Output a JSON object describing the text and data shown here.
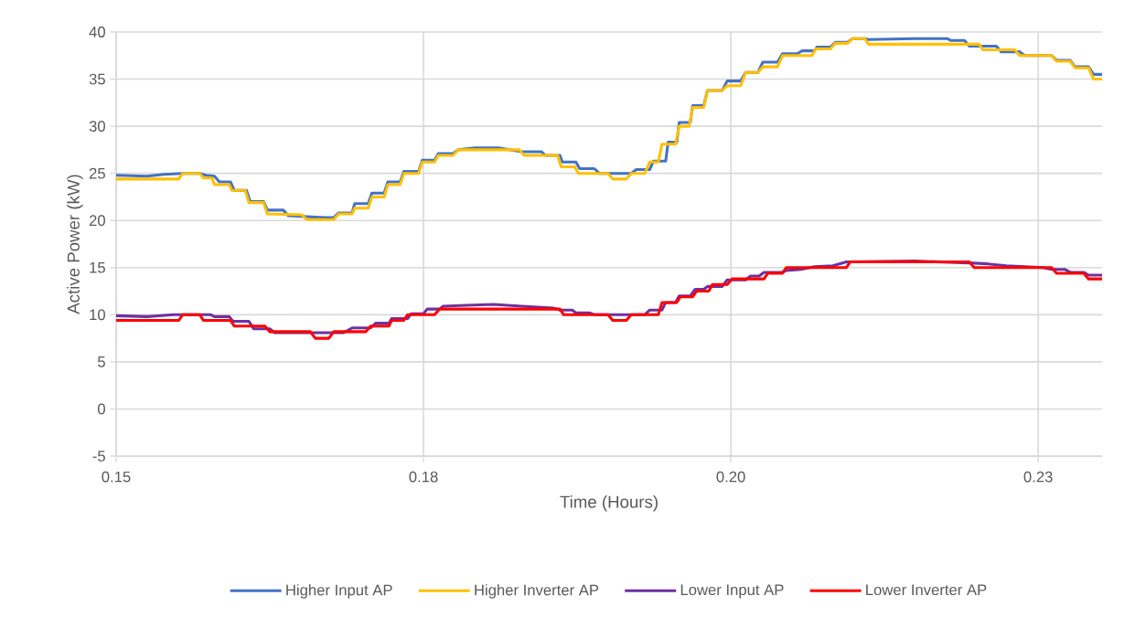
{
  "chart_data": {
    "type": "line",
    "xlabel": "Time (Hours)",
    "ylabel": "Active Power (kW)",
    "xlim": [
      0.15,
      0.2302
    ],
    "xticks": [
      {
        "value": 0.15,
        "label": "0.15"
      },
      {
        "value": 0.175,
        "label": "0.18"
      },
      {
        "value": 0.2,
        "label": "0.20"
      },
      {
        "value": 0.225,
        "label": "0.23"
      }
    ],
    "ylim": [
      -5,
      40
    ],
    "yticks": [
      -5,
      0,
      5,
      10,
      15,
      20,
      25,
      30,
      35,
      40
    ],
    "grid": true,
    "legend": "bottom",
    "series": [
      {
        "name": "Higher Input AP",
        "color": "#4472c4",
        "x": [
          0.15,
          0.1525,
          0.1539,
          0.1554,
          0.1568,
          0.1573,
          0.158,
          0.1584,
          0.1593,
          0.1596,
          0.1606,
          0.1609,
          0.162,
          0.1623,
          0.1636,
          0.164,
          0.167,
          0.1677,
          0.1681,
          0.1692,
          0.1694,
          0.1705,
          0.1708,
          0.1718,
          0.1721,
          0.1731,
          0.1734,
          0.1746,
          0.1749,
          0.1759,
          0.1762,
          0.1774,
          0.1778,
          0.1792,
          0.1811,
          0.183,
          0.1846,
          0.1849,
          0.1861,
          0.1863,
          0.1874,
          0.1877,
          0.1889,
          0.1893,
          0.1919,
          0.1923,
          0.1934,
          0.1937,
          0.1947,
          0.1949,
          0.1956,
          0.1958,
          0.1967,
          0.1969,
          0.1978,
          0.1981,
          0.1993,
          0.1997,
          0.2008,
          0.2012,
          0.2022,
          0.2026,
          0.2038,
          0.2042,
          0.2054,
          0.2058,
          0.2068,
          0.207,
          0.2081,
          0.2085,
          0.2095,
          0.2099,
          0.2109,
          0.2112,
          0.215,
          0.2176,
          0.2179,
          0.219,
          0.2194,
          0.2216,
          0.222,
          0.2235,
          0.2239,
          0.2261,
          0.2265,
          0.2276,
          0.228,
          0.2291,
          0.2295,
          0.2302
        ],
        "values": [
          24.8,
          24.7,
          24.9,
          25.0,
          25.0,
          24.8,
          24.7,
          24.1,
          24.1,
          23.2,
          23.2,
          22.0,
          22.0,
          21.1,
          21.1,
          20.5,
          20.3,
          20.3,
          20.8,
          20.8,
          21.8,
          21.8,
          22.9,
          22.9,
          24.1,
          24.1,
          25.2,
          25.2,
          26.4,
          26.4,
          27.1,
          27.1,
          27.5,
          27.7,
          27.7,
          27.3,
          27.3,
          26.9,
          26.9,
          26.2,
          26.2,
          25.5,
          25.5,
          25.0,
          25.0,
          25.4,
          25.4,
          26.3,
          26.3,
          28.3,
          28.3,
          30.4,
          30.4,
          32.2,
          32.2,
          33.8,
          33.8,
          34.8,
          34.8,
          35.7,
          35.7,
          36.8,
          36.8,
          37.7,
          37.7,
          38.0,
          38.0,
          38.4,
          38.4,
          38.9,
          38.9,
          39.3,
          39.3,
          39.2,
          39.3,
          39.3,
          39.1,
          39.1,
          38.5,
          38.5,
          37.9,
          37.9,
          37.5,
          37.5,
          37.0,
          37.0,
          36.3,
          36.3,
          35.5,
          35.5
        ]
      },
      {
        "name": "Higher Inverter AP",
        "color": "#ffc000",
        "x": [
          0.15,
          0.1551,
          0.1554,
          0.1568,
          0.1571,
          0.1578,
          0.158,
          0.1592,
          0.1594,
          0.1605,
          0.1608,
          0.162,
          0.1623,
          0.1651,
          0.1655,
          0.1677,
          0.1681,
          0.1692,
          0.1694,
          0.1705,
          0.1708,
          0.1718,
          0.1721,
          0.1731,
          0.1734,
          0.1746,
          0.1749,
          0.1759,
          0.1762,
          0.1774,
          0.1778,
          0.1828,
          0.1832,
          0.1859,
          0.1862,
          0.1873,
          0.1876,
          0.19,
          0.1904,
          0.1915,
          0.1919,
          0.193,
          0.1934,
          0.1941,
          0.1944,
          0.1947,
          0.1955,
          0.1958,
          0.1966,
          0.1969,
          0.1978,
          0.1981,
          0.1993,
          0.1997,
          0.2008,
          0.2012,
          0.2022,
          0.2026,
          0.2038,
          0.2042,
          0.2066,
          0.2069,
          0.2081,
          0.2085,
          0.2095,
          0.2099,
          0.2109,
          0.2112,
          0.2202,
          0.2205,
          0.2231,
          0.2235,
          0.2261,
          0.2265,
          0.2276,
          0.228,
          0.2291,
          0.2295,
          0.2302
        ],
        "values": [
          24.4,
          24.4,
          25.0,
          25.0,
          24.5,
          24.5,
          23.8,
          23.8,
          23.2,
          23.2,
          21.9,
          21.9,
          20.7,
          20.6,
          20.1,
          20.1,
          20.7,
          20.7,
          21.3,
          21.3,
          22.5,
          22.5,
          23.8,
          23.8,
          25.0,
          25.0,
          26.2,
          26.2,
          26.9,
          26.9,
          27.5,
          27.5,
          26.9,
          26.9,
          25.7,
          25.7,
          25.0,
          25.0,
          24.4,
          24.4,
          25.0,
          25.0,
          26.2,
          26.2,
          28.1,
          28.1,
          28.1,
          30.0,
          30.0,
          32.0,
          32.0,
          33.8,
          33.8,
          34.3,
          34.3,
          35.7,
          35.7,
          36.3,
          36.3,
          37.5,
          37.5,
          38.2,
          38.2,
          38.8,
          38.8,
          39.3,
          39.3,
          38.7,
          38.7,
          38.1,
          38.1,
          37.5,
          37.5,
          36.9,
          36.9,
          36.2,
          36.2,
          35.0,
          35.0
        ]
      },
      {
        "name": "Lower Input AP",
        "color": "#7030a0",
        "x": [
          0.15,
          0.1525,
          0.1547,
          0.1577,
          0.158,
          0.1592,
          0.1595,
          0.1608,
          0.1612,
          0.1625,
          0.1629,
          0.1658,
          0.1685,
          0.1688,
          0.1692,
          0.1707,
          0.1711,
          0.1722,
          0.1724,
          0.1737,
          0.174,
          0.175,
          0.1753,
          0.1763,
          0.1766,
          0.1785,
          0.1807,
          0.183,
          0.1856,
          0.1861,
          0.1871,
          0.1874,
          0.1885,
          0.1889,
          0.193,
          0.1934,
          0.1944,
          0.1947,
          0.1955,
          0.1958,
          0.1967,
          0.1971,
          0.1978,
          0.1981,
          0.1993,
          0.1997,
          0.2012,
          0.2016,
          0.2023,
          0.2027,
          0.2042,
          0.2045,
          0.2057,
          0.2068,
          0.2083,
          0.2094,
          0.215,
          0.2194,
          0.2209,
          0.2224,
          0.2239,
          0.2254,
          0.2261,
          0.2272,
          0.2276,
          0.2287,
          0.2291,
          0.2302
        ],
        "values": [
          9.9,
          9.8,
          10.0,
          10.0,
          9.8,
          9.8,
          9.3,
          9.3,
          8.5,
          8.5,
          8.1,
          8.1,
          8.1,
          8.3,
          8.6,
          8.6,
          9.1,
          9.1,
          9.6,
          9.6,
          10.1,
          10.1,
          10.6,
          10.6,
          10.9,
          11.0,
          11.1,
          10.9,
          10.7,
          10.5,
          10.5,
          10.2,
          10.2,
          10.0,
          10.0,
          10.5,
          10.5,
          11.3,
          11.3,
          12.0,
          12.0,
          12.7,
          12.7,
          13.0,
          13.0,
          13.7,
          13.7,
          14.1,
          14.1,
          14.5,
          14.5,
          14.7,
          14.8,
          15.1,
          15.2,
          15.6,
          15.7,
          15.5,
          15.4,
          15.2,
          15.1,
          15.0,
          14.8,
          14.8,
          14.5,
          14.5,
          14.2,
          14.2
        ]
      },
      {
        "name": "Lower Inverter AP",
        "color": "#ff0000",
        "x": [
          0.15,
          0.1551,
          0.1554,
          0.1568,
          0.1571,
          0.1593,
          0.1596,
          0.1621,
          0.1625,
          0.1658,
          0.1662,
          0.1673,
          0.1677,
          0.1703,
          0.1707,
          0.1722,
          0.1724,
          0.1734,
          0.1737,
          0.1759,
          0.1763,
          0.1861,
          0.1864,
          0.19,
          0.1904,
          0.1915,
          0.1919,
          0.1941,
          0.1944,
          0.1956,
          0.1959,
          0.1969,
          0.1972,
          0.1982,
          0.1985,
          0.1997,
          0.2001,
          0.2027,
          0.203,
          0.2042,
          0.2045,
          0.2094,
          0.2097,
          0.2194,
          0.2198,
          0.2261,
          0.2265,
          0.2287,
          0.2291,
          0.2302
        ],
        "values": [
          9.4,
          9.4,
          10.0,
          10.0,
          9.4,
          9.4,
          8.8,
          8.8,
          8.2,
          8.2,
          7.5,
          7.5,
          8.2,
          8.2,
          8.8,
          8.8,
          9.4,
          9.4,
          10.0,
          10.0,
          10.6,
          10.6,
          10.0,
          10.0,
          9.4,
          9.4,
          10.0,
          10.0,
          11.3,
          11.3,
          11.9,
          11.9,
          12.5,
          12.5,
          13.2,
          13.2,
          13.8,
          13.8,
          14.4,
          14.4,
          15.0,
          15.0,
          15.6,
          15.6,
          15.0,
          15.0,
          14.4,
          14.4,
          13.8,
          13.8
        ]
      }
    ]
  }
}
